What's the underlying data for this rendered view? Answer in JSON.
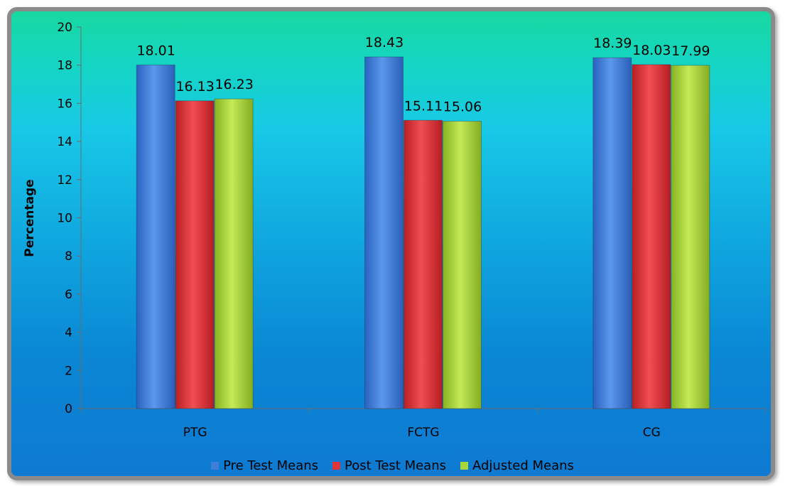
{
  "chart_data": {
    "type": "bar",
    "title": "",
    "xlabel": "",
    "ylabel": "Percentage",
    "ylim": [
      0,
      20
    ],
    "yticks": [
      0,
      2,
      4,
      6,
      8,
      10,
      12,
      14,
      16,
      18,
      20
    ],
    "categories": [
      "PTG",
      "FCTG",
      "CG"
    ],
    "series": [
      {
        "name": "Pre Test Means",
        "color": "#3f7fd8",
        "values": [
          18.01,
          18.43,
          18.39
        ]
      },
      {
        "name": "Post Test Means",
        "color": "#e0343a",
        "values": [
          16.13,
          15.11,
          18.03
        ]
      },
      {
        "name": "Adjusted Means",
        "color": "#a9d63a",
        "values": [
          16.23,
          15.06,
          17.99
        ]
      }
    ],
    "value_labels": [
      [
        "18.01",
        "18.43",
        "18.39"
      ],
      [
        "16.13",
        "15.11",
        "18.03"
      ],
      [
        "16.23",
        "15.06",
        "17.99"
      ]
    ],
    "legend_position": "bottom",
    "grid": false
  }
}
